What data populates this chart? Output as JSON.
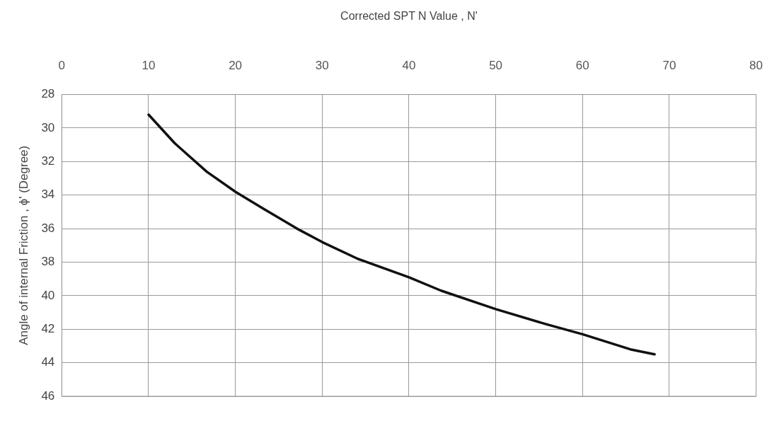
{
  "chart_data": {
    "type": "line",
    "xlabel": "Corrected SPT N Value , N'",
    "ylabel": "Angle of internal Friction , ϕ' (Degree)",
    "x": [
      10,
      13,
      16.7,
      20,
      23.2,
      27.1,
      30,
      34.1,
      40,
      43.7,
      50,
      55.8,
      60,
      65.5,
      68.3
    ],
    "series": [
      {
        "color": "#111111",
        "values": [
          29.2,
          30.9,
          32.6,
          33.8,
          34.8,
          36.0,
          36.8,
          37.8,
          38.9,
          39.7,
          40.8,
          41.7,
          42.3,
          43.2,
          43.5
        ]
      }
    ],
    "xlim": [
      0,
      80
    ],
    "xticks": [
      0,
      10,
      20,
      30,
      40,
      50,
      60,
      70,
      80
    ],
    "ylim": [
      46,
      28
    ],
    "yticks": [
      28,
      30,
      32,
      34,
      36,
      38,
      40,
      42,
      44,
      46
    ],
    "grid": true,
    "legend": false,
    "marker": "none",
    "line_style": "solid"
  }
}
